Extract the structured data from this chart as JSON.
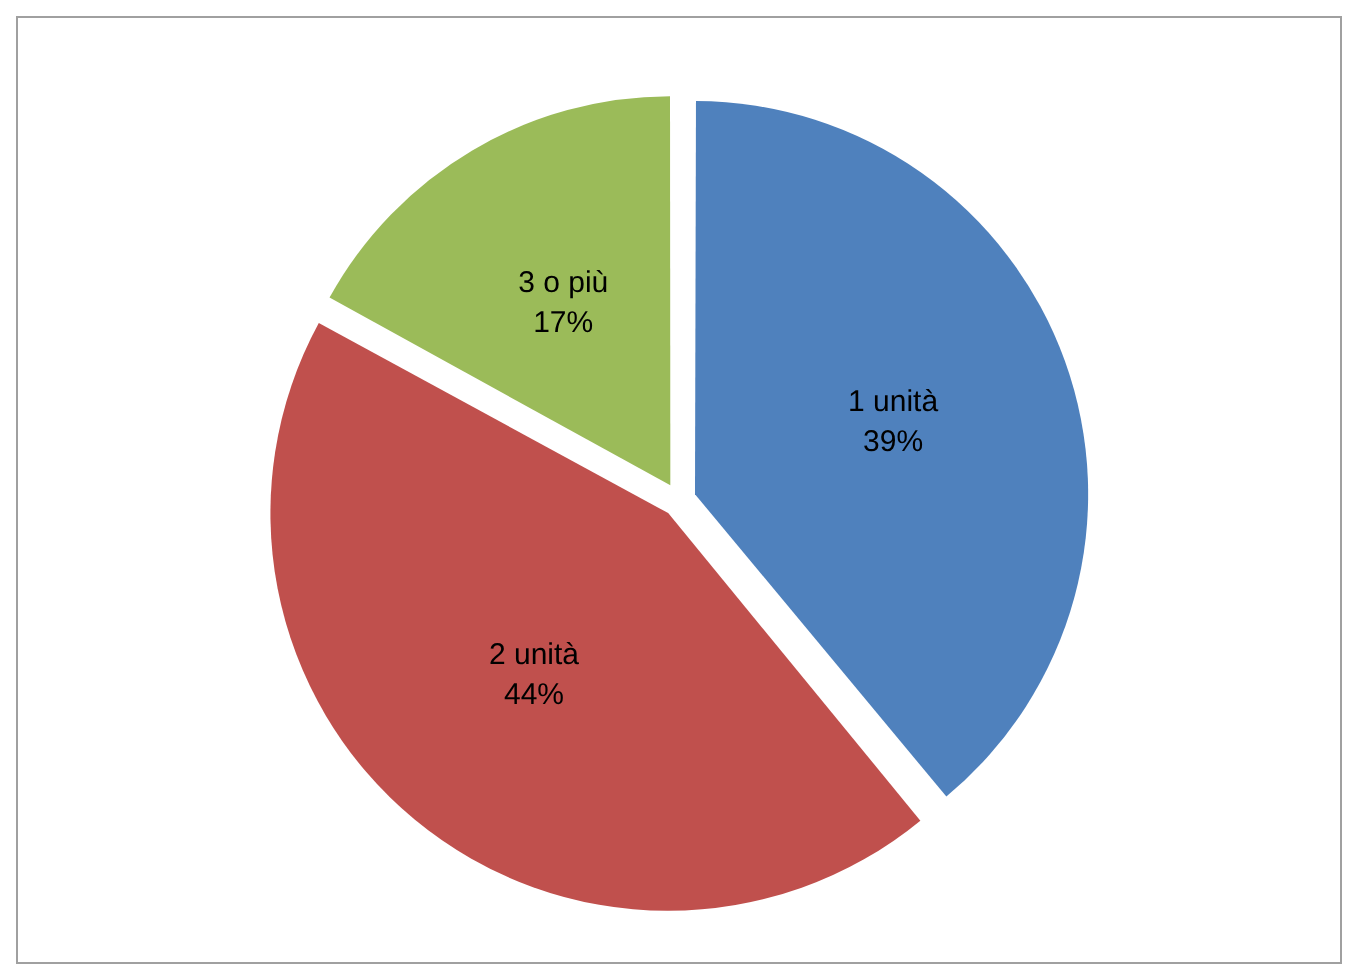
{
  "chart_data": {
    "type": "pie",
    "categories": [
      "1 unità",
      "2 unità",
      "3 o più"
    ],
    "values": [
      39,
      44,
      17
    ],
    "colors": [
      "#4f81bd",
      "#c0504d",
      "#9bbb59"
    ],
    "value_labels": [
      "39%",
      "44%",
      "17%"
    ],
    "legend": false
  }
}
